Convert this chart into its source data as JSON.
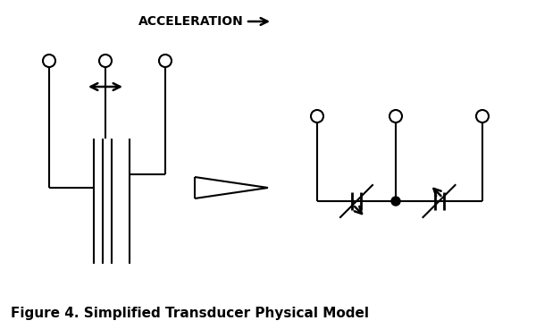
{
  "bg_color": "#ffffff",
  "line_color": "#000000",
  "title": "Figure 4. Simplified Transducer Physical Model",
  "accel_label": "ACCELERATION",
  "fig_width": 6.0,
  "fig_height": 3.68,
  "dpi": 100
}
